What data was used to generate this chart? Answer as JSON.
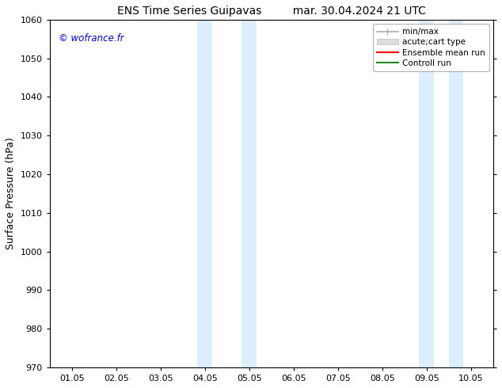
{
  "title_left": "ENS Time Series Guipavas",
  "title_right": "mar. 30.04.2024 21 UTC",
  "ylabel": "Surface Pressure (hPa)",
  "ylim": [
    970,
    1060
  ],
  "yticks": [
    970,
    980,
    990,
    1000,
    1010,
    1020,
    1030,
    1040,
    1050,
    1060
  ],
  "xtick_labels": [
    "01.05",
    "02.05",
    "03.05",
    "04.05",
    "05.05",
    "06.05",
    "07.05",
    "08.05",
    "09.05",
    "10.05"
  ],
  "xtick_positions": [
    0,
    1,
    2,
    3,
    4,
    5,
    6,
    7,
    8,
    9
  ],
  "xlim": [
    -0.5,
    9.5
  ],
  "watermark": "© wofrance.fr",
  "watermark_color": "#0000cc",
  "bg_color": "#ffffff",
  "plot_bg_color": "#ffffff",
  "shaded_regions": [
    {
      "xstart": 2.83,
      "xend": 3.17,
      "color": "#ddeeff"
    },
    {
      "xstart": 3.83,
      "xend": 4.17,
      "color": "#ddeeff"
    },
    {
      "xstart": 7.83,
      "xend": 8.17,
      "color": "#ddeeff"
    },
    {
      "xstart": 8.5,
      "xend": 8.83,
      "color": "#ddeeff"
    }
  ],
  "legend_entries": [
    {
      "label": "min/max",
      "color": "#aaaaaa",
      "lw": 1.5,
      "style": "|-|"
    },
    {
      "label": "acute;cart type",
      "color": "#cccccc",
      "lw": 8,
      "style": "solid"
    },
    {
      "label": "Ensemble mean run",
      "color": "#ff0000",
      "lw": 1.5,
      "style": "solid"
    },
    {
      "label": "Controll run",
      "color": "#228822",
      "lw": 1.5,
      "style": "solid"
    }
  ],
  "title_fontsize": 10,
  "axis_label_fontsize": 9,
  "tick_fontsize": 8,
  "legend_fontsize": 7.5
}
